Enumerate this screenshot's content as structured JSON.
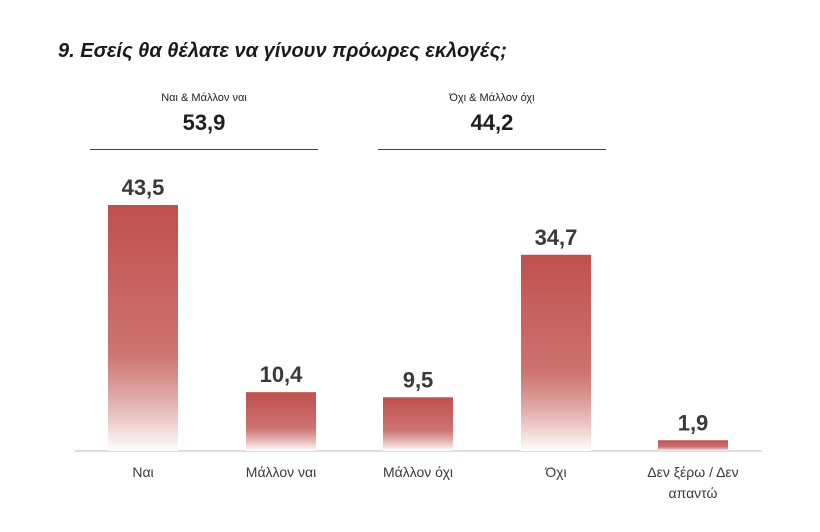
{
  "title": "9. Εσείς θα θέλατε να γίνουν πρόωρες εκλογές;",
  "groups": [
    {
      "label": "Ναι & Μάλλον ναι",
      "value": "53,9"
    },
    {
      "label": "Όχι & Μάλλον όχι",
      "value": "44,2"
    }
  ],
  "colors": {
    "bar": "#c0504d",
    "bar_fade": "#ffffff",
    "axis": "#bdbdbd",
    "text": "#3a3a3a"
  },
  "chart_data": {
    "type": "bar",
    "title": "9. Εσείς θα θέλατε να γίνουν πρόωρες εκλογές;",
    "categories": [
      "Ναι",
      "Μάλλον ναι",
      "Μάλλον όχι",
      "Όχι",
      "Δεν ξέρω / Δεν απαντώ"
    ],
    "category_lines": [
      [
        "Ναι"
      ],
      [
        "Μάλλον ναι"
      ],
      [
        "Μάλλον όχι"
      ],
      [
        "Όχι"
      ],
      [
        "Δεν ξέρω / Δεν",
        "απαντώ"
      ]
    ],
    "values": [
      43.5,
      10.4,
      9.5,
      34.7,
      1.9
    ],
    "value_labels": [
      "43,5",
      "10,4",
      "9,5",
      "34,7",
      "1,9"
    ],
    "ylim": [
      0,
      43.5
    ],
    "grid": false,
    "legend": "none"
  }
}
